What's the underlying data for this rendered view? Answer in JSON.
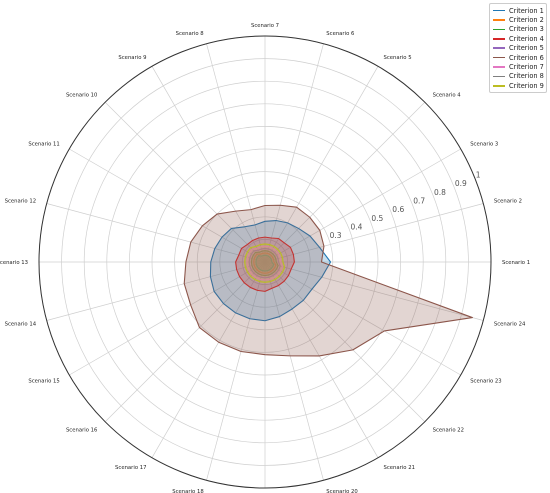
{
  "chart_data": {
    "type": "radar",
    "categories": [
      "Scenario 1",
      "Scenario 2",
      "Scenario 3",
      "Scenario 4",
      "Scenario 5",
      "Scenario 6",
      "Scenario 7",
      "Scenario 8",
      "Scenario 9",
      "Scenario 10",
      "Scenario 11",
      "Scenario 12",
      "Scenario 13",
      "Scenario 14",
      "Scenario 15",
      "Scenario 16",
      "Scenario 17",
      "Scenario 18",
      "Scenario 19",
      "Scenario 20",
      "Scenario 21",
      "Scenario 22",
      "Scenario 23",
      "Scenario 24"
    ],
    "rlim": [
      0,
      1
    ],
    "rticks": [
      0.3,
      0.4,
      0.5,
      0.6,
      0.7,
      0.8,
      0.9,
      1
    ],
    "grid": true,
    "legend_position": "top-right",
    "series": [
      {
        "name": "Criterion 1",
        "color": "#1f77b4",
        "values": [
          0.29,
          0.25,
          0.23,
          0.21,
          0.2,
          0.19,
          0.18,
          0.17,
          0.18,
          0.21,
          0.22,
          0.23,
          0.24,
          0.25,
          0.26,
          0.26,
          0.26,
          0.26,
          0.26,
          0.25,
          0.24,
          0.24,
          0.24,
          0.26
        ]
      },
      {
        "name": "Criterion 2",
        "color": "#ff7f0e",
        "values": [
          0.04,
          0.04,
          0.04,
          0.04,
          0.04,
          0.04,
          0.04,
          0.04,
          0.04,
          0.05,
          0.05,
          0.05,
          0.05,
          0.05,
          0.05,
          0.05,
          0.05,
          0.05,
          0.05,
          0.05,
          0.05,
          0.05,
          0.05,
          0.05
        ]
      },
      {
        "name": "Criterion 3",
        "color": "#2ca02c",
        "values": [
          0.05,
          0.05,
          0.05,
          0.05,
          0.05,
          0.05,
          0.05,
          0.05,
          0.05,
          0.06,
          0.06,
          0.06,
          0.06,
          0.06,
          0.06,
          0.06,
          0.06,
          0.06,
          0.06,
          0.06,
          0.06,
          0.06,
          0.06,
          0.06
        ]
      },
      {
        "name": "Criterion 4",
        "color": "#d62728",
        "values": [
          0.13,
          0.13,
          0.13,
          0.12,
          0.12,
          0.11,
          0.11,
          0.11,
          0.11,
          0.11,
          0.12,
          0.12,
          0.13,
          0.13,
          0.13,
          0.13,
          0.13,
          0.13,
          0.13,
          0.12,
          0.12,
          0.12,
          0.12,
          0.12
        ]
      },
      {
        "name": "Criterion 5",
        "color": "#9467bd",
        "values": [
          0.06,
          0.06,
          0.06,
          0.06,
          0.06,
          0.06,
          0.06,
          0.06,
          0.06,
          0.07,
          0.07,
          0.07,
          0.07,
          0.07,
          0.07,
          0.07,
          0.07,
          0.07,
          0.07,
          0.07,
          0.07,
          0.07,
          0.07,
          0.07
        ]
      },
      {
        "name": "Criterion 6",
        "color": "#8c564b",
        "values": [
          0.25,
          0.27,
          0.28,
          0.28,
          0.28,
          0.26,
          0.25,
          0.24,
          0.26,
          0.3,
          0.32,
          0.34,
          0.35,
          0.37,
          0.38,
          0.41,
          0.41,
          0.41,
          0.41,
          0.43,
          0.48,
          0.55,
          0.61,
          0.95
        ]
      },
      {
        "name": "Criterion 7",
        "color": "#e377c2",
        "values": [
          0.07,
          0.07,
          0.07,
          0.07,
          0.07,
          0.07,
          0.07,
          0.07,
          0.07,
          0.08,
          0.08,
          0.08,
          0.08,
          0.08,
          0.08,
          0.08,
          0.08,
          0.08,
          0.08,
          0.08,
          0.08,
          0.08,
          0.08,
          0.08
        ]
      },
      {
        "name": "Criterion 8",
        "color": "#7f7f7f",
        "values": [
          0.03,
          0.03,
          0.03,
          0.03,
          0.03,
          0.03,
          0.03,
          0.03,
          0.03,
          0.04,
          0.04,
          0.04,
          0.04,
          0.04,
          0.04,
          0.04,
          0.04,
          0.04,
          0.04,
          0.04,
          0.04,
          0.04,
          0.04,
          0.04
        ]
      },
      {
        "name": "Criterion 9",
        "color": "#bcbd22",
        "values": [
          0.08,
          0.08,
          0.08,
          0.08,
          0.08,
          0.08,
          0.08,
          0.08,
          0.08,
          0.09,
          0.09,
          0.09,
          0.09,
          0.09,
          0.09,
          0.09,
          0.09,
          0.09,
          0.09,
          0.09,
          0.09,
          0.09,
          0.09,
          0.09
        ]
      }
    ]
  }
}
